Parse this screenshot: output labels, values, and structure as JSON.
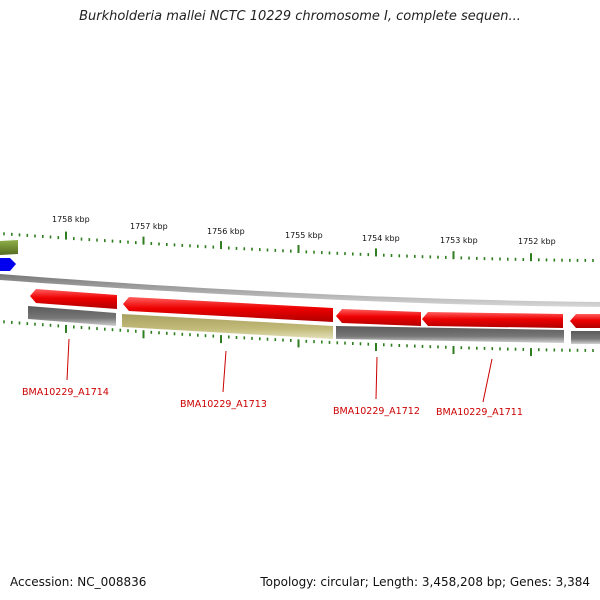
{
  "title": "Burkholderia mallei NCTC 10229 chromosome I, complete sequen...",
  "ticks": [
    {
      "label": "1758 kbp"
    },
    {
      "label": "1757 kbp"
    },
    {
      "label": "1756 kbp"
    },
    {
      "label": "1755 kbp"
    },
    {
      "label": "1754 kbp"
    },
    {
      "label": "1753 kbp"
    },
    {
      "label": "1752 kbp"
    }
  ],
  "genes": [
    {
      "label": "BMA10229_A1714",
      "color": "#e80000"
    },
    {
      "label": "BMA10229_A1713",
      "color": "#e80000"
    },
    {
      "label": "BMA10229_A1712",
      "color": "#e80000"
    },
    {
      "label": "BMA10229_A1711",
      "color": "#e80000"
    }
  ],
  "colors": {
    "cds": "#e80000",
    "gene_track": "#777777",
    "highlighted_gene_track": "#bdb76b",
    "backbone": "#a8a8a8",
    "ticks": "#2e7d1f",
    "edge_feature_green": "#6b8e23",
    "edge_feature_blue": "#0000ee",
    "label_text": "#cc0000"
  },
  "footer": {
    "accession": "Accession: NC_008836",
    "topology": "Topology: circular; Length: 3,458,208 bp; Genes: 3,384"
  }
}
